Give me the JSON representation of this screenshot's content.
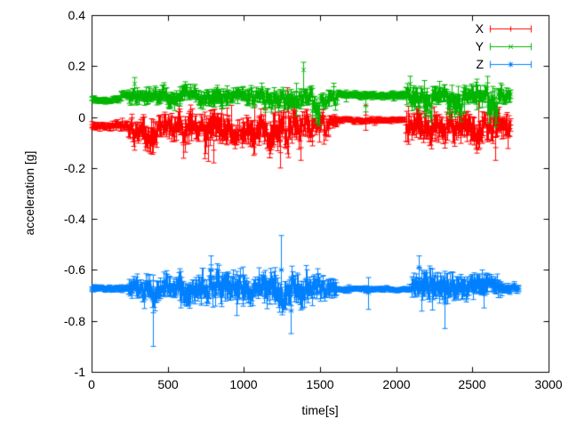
{
  "chart_data": {
    "type": "line_with_errorbars",
    "title": "",
    "xlabel": "time[s]",
    "ylabel": "acceleration [g]",
    "xlim": [
      0,
      3000
    ],
    "ylim": [
      -1,
      0.4
    ],
    "x_tick_values": [
      0,
      500,
      1000,
      1500,
      2000,
      2500,
      3000
    ],
    "x_tick_labels": [
      "0",
      "500",
      "1000",
      "1500",
      "2000",
      "2500",
      "3000"
    ],
    "y_tick_values": [
      0.4,
      0.2,
      0,
      -0.2,
      -0.4,
      -0.6,
      -0.8,
      -1
    ],
    "y_tick_labels": [
      "0.4",
      "0.2",
      "0",
      "-0.2",
      "-0.4",
      "-0.6",
      "-0.8",
      "-1"
    ],
    "grid": false,
    "legend_position": "top-right-inside",
    "frame_color": "#000000",
    "text_color": "#000000",
    "background_color": "#ffffff",
    "sample_step_s": 5,
    "segment_format": "[t_start, t_end, mean_g, noise_amp_g, errorbar_g]",
    "event_format": "[t, value_g, errbar_low_g, errbar_high_g]",
    "series": [
      {
        "name": "X",
        "color": "#ff0000",
        "marker": "plus",
        "envelope_segments": [
          [
            0,
            150,
            -0.035,
            0.005,
            0.012
          ],
          [
            150,
            235,
            -0.033,
            0.007,
            0.015
          ],
          [
            235,
            330,
            -0.05,
            0.022,
            0.035
          ],
          [
            330,
            430,
            -0.06,
            0.028,
            0.045
          ],
          [
            430,
            540,
            -0.05,
            0.022,
            0.035
          ],
          [
            540,
            660,
            -0.06,
            0.03,
            0.05
          ],
          [
            660,
            730,
            -0.045,
            0.018,
            0.03
          ],
          [
            730,
            890,
            -0.065,
            0.032,
            0.05
          ],
          [
            890,
            1010,
            -0.05,
            0.022,
            0.035
          ],
          [
            1010,
            1160,
            -0.055,
            0.028,
            0.045
          ],
          [
            1160,
            1330,
            -0.065,
            0.035,
            0.055
          ],
          [
            1330,
            1450,
            -0.05,
            0.028,
            0.045
          ],
          [
            1450,
            1560,
            -0.035,
            0.02,
            0.03
          ],
          [
            1560,
            1610,
            -0.02,
            0.01,
            0.018
          ],
          [
            1610,
            2055,
            -0.012,
            0.0035,
            0.009
          ],
          [
            2055,
            2130,
            -0.035,
            0.022,
            0.035
          ],
          [
            2130,
            2300,
            -0.045,
            0.028,
            0.045
          ],
          [
            2300,
            2480,
            -0.04,
            0.025,
            0.04
          ],
          [
            2480,
            2600,
            -0.045,
            0.028,
            0.045
          ],
          [
            2600,
            2750,
            -0.04,
            0.026,
            0.042
          ]
        ],
        "events": [
          [
            1285,
            0.075,
            0.02,
            0.115
          ],
          [
            1800,
            -0.01,
            -0.052,
            0.045
          ],
          [
            405,
            -0.1,
            -0.14,
            -0.06
          ],
          [
            800,
            -0.13,
            -0.18,
            -0.09
          ],
          [
            1235,
            -0.14,
            -0.2,
            -0.09
          ],
          [
            1370,
            -0.12,
            -0.17,
            -0.07
          ],
          [
            2650,
            -0.12,
            -0.17,
            -0.08
          ]
        ]
      },
      {
        "name": "Y",
        "color": "#00b400",
        "marker": "cross",
        "envelope_segments": [
          [
            0,
            190,
            0.068,
            0.004,
            0.011
          ],
          [
            190,
            240,
            0.088,
            0.005,
            0.012
          ],
          [
            240,
            420,
            0.085,
            0.012,
            0.022
          ],
          [
            420,
            560,
            0.08,
            0.014,
            0.026
          ],
          [
            560,
            700,
            0.09,
            0.013,
            0.024
          ],
          [
            700,
            860,
            0.08,
            0.015,
            0.028
          ],
          [
            860,
            1000,
            0.088,
            0.013,
            0.024
          ],
          [
            1000,
            1160,
            0.08,
            0.015,
            0.028
          ],
          [
            1160,
            1385,
            0.075,
            0.016,
            0.03
          ],
          [
            1385,
            1445,
            0.08,
            0.014,
            0.026
          ],
          [
            1445,
            1495,
            0.015,
            0.025,
            0.035
          ],
          [
            1495,
            1610,
            0.06,
            0.015,
            0.026
          ],
          [
            1610,
            2055,
            0.085,
            0.004,
            0.011
          ],
          [
            2055,
            2180,
            0.075,
            0.018,
            0.03
          ],
          [
            2180,
            2230,
            0.03,
            0.028,
            0.04
          ],
          [
            2230,
            2330,
            0.08,
            0.018,
            0.03
          ],
          [
            2330,
            2430,
            0.06,
            0.025,
            0.038
          ],
          [
            2430,
            2590,
            0.085,
            0.016,
            0.028
          ],
          [
            2590,
            2660,
            0.04,
            0.028,
            0.042
          ],
          [
            2660,
            2750,
            0.08,
            0.016,
            0.028
          ]
        ],
        "events": [
          [
            1388,
            0.185,
            0.1,
            0.215
          ],
          [
            1800,
            0.045,
            0.02,
            0.07
          ],
          [
            280,
            0.13,
            0.1,
            0.155
          ],
          [
            2090,
            0.13,
            0.1,
            0.16
          ]
        ]
      },
      {
        "name": "Z",
        "color": "#0080ff",
        "marker": "star",
        "envelope_segments": [
          [
            0,
            235,
            -0.675,
            0.004,
            0.01
          ],
          [
            235,
            330,
            -0.672,
            0.016,
            0.03
          ],
          [
            330,
            440,
            -0.68,
            0.02,
            0.038
          ],
          [
            440,
            560,
            -0.67,
            0.018,
            0.034
          ],
          [
            560,
            700,
            -0.665,
            0.022,
            0.04
          ],
          [
            700,
            830,
            -0.66,
            0.025,
            0.045
          ],
          [
            830,
            1000,
            -0.665,
            0.025,
            0.045
          ],
          [
            1000,
            1130,
            -0.672,
            0.02,
            0.038
          ],
          [
            1130,
            1300,
            -0.675,
            0.026,
            0.048
          ],
          [
            1300,
            1420,
            -0.68,
            0.028,
            0.05
          ],
          [
            1420,
            1530,
            -0.67,
            0.022,
            0.04
          ],
          [
            1530,
            1605,
            -0.672,
            0.014,
            0.026
          ],
          [
            1605,
            2095,
            -0.676,
            0.0035,
            0.008
          ],
          [
            2095,
            2230,
            -0.66,
            0.02,
            0.038
          ],
          [
            2230,
            2360,
            -0.665,
            0.022,
            0.04
          ],
          [
            2360,
            2470,
            -0.67,
            0.02,
            0.036
          ],
          [
            2470,
            2600,
            -0.66,
            0.018,
            0.034
          ],
          [
            2600,
            2690,
            -0.665,
            0.015,
            0.028
          ],
          [
            2690,
            2800,
            -0.672,
            0.007,
            0.013
          ]
        ],
        "events": [
          [
            400,
            -0.72,
            -0.9,
            -0.62
          ],
          [
            1243,
            -0.6,
            -0.7,
            -0.465
          ],
          [
            1815,
            -0.69,
            -0.755,
            -0.63
          ],
          [
            2317,
            -0.73,
            -0.83,
            -0.65
          ],
          [
            780,
            -0.6,
            -0.655,
            -0.545
          ],
          [
            1310,
            -0.76,
            -0.85,
            -0.7
          ],
          [
            2150,
            -0.59,
            -0.645,
            -0.545
          ]
        ]
      }
    ]
  }
}
